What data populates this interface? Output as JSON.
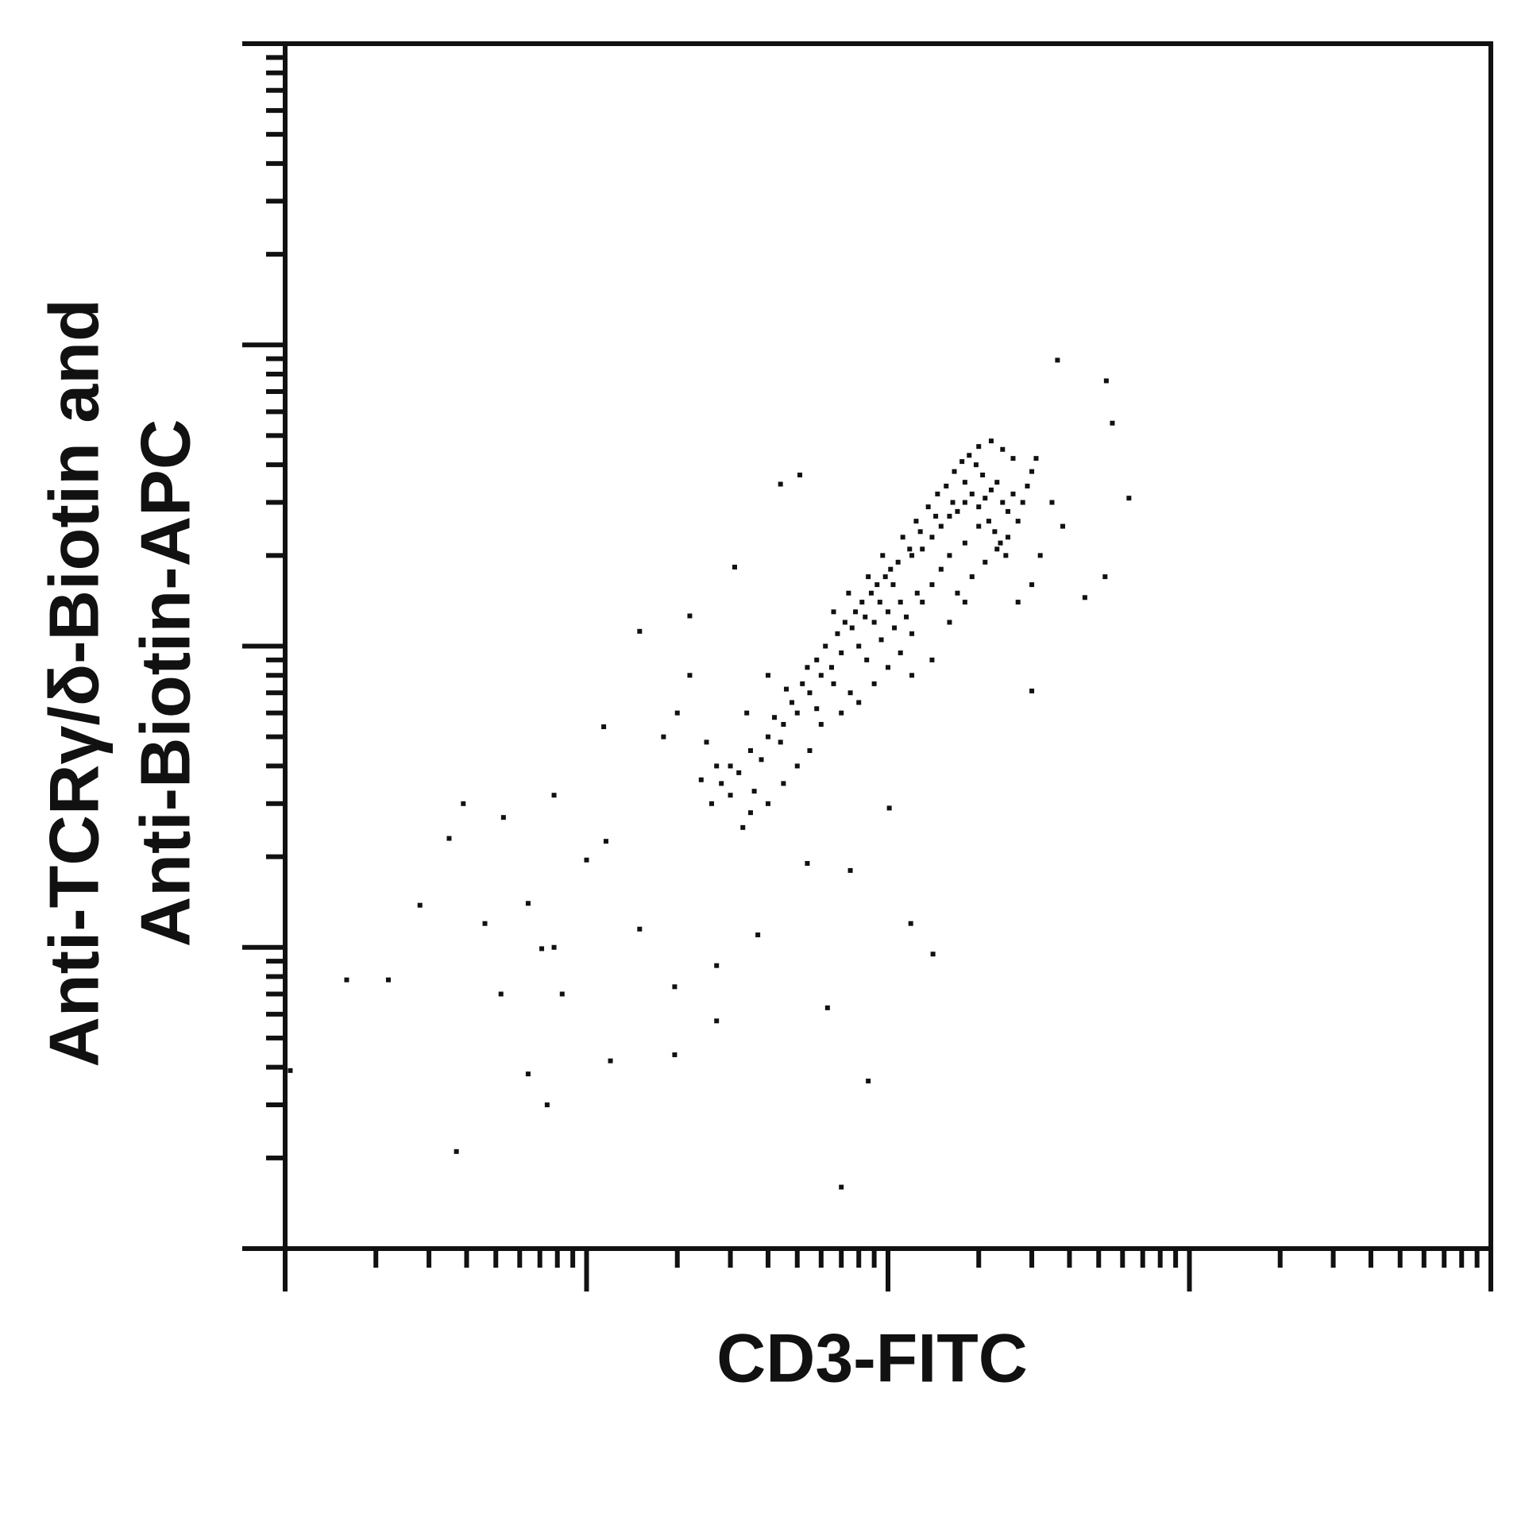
{
  "chart_data": {
    "type": "scatter",
    "x_label": "CD3-FITC",
    "y_label": [
      "Anti-TCRγ/δ-Biotin and",
      "Anti-Biotin-APC"
    ],
    "log_scale": true,
    "grid": false,
    "color": "#111111",
    "xlim": [
      1,
      10000
    ],
    "ylim": [
      1,
      10000
    ],
    "xticks": [
      1,
      10,
      100,
      1000,
      10000
    ],
    "yticks": [
      1,
      10,
      100,
      1000,
      10000
    ],
    "xticks_minor": [
      2,
      3,
      4,
      5,
      6,
      7,
      8,
      9,
      20,
      30,
      40,
      50,
      60,
      70,
      80,
      90,
      200,
      300,
      400,
      500,
      600,
      700,
      800,
      900,
      2000,
      3000,
      4000,
      5000,
      6000,
      7000,
      8000,
      9000
    ],
    "yticks_minor": [
      2,
      3,
      4,
      5,
      6,
      7,
      8,
      9,
      20,
      30,
      40,
      50,
      60,
      70,
      80,
      90,
      200,
      300,
      400,
      500,
      600,
      700,
      800,
      900,
      2000,
      3000,
      4000,
      5000,
      6000,
      7000,
      8000,
      9000
    ],
    "x": [
      1.6,
      2.2,
      3.7,
      1.04,
      2.8,
      3.5,
      3.9,
      5.3,
      4.6,
      6.4,
      7.1,
      7.8,
      5.2,
      8.3,
      6.4,
      7.4,
      12,
      19.6,
      19.6,
      27,
      27,
      63,
      86,
      70,
      119,
      141,
      7.8,
      75,
      54,
      37,
      15,
      11.6,
      10,
      365,
      530,
      555,
      630,
      525,
      450,
      300,
      101,
      51,
      44,
      31,
      22,
      15,
      11.4,
      60,
      70,
      80,
      90,
      100,
      110,
      75,
      85,
      95,
      105,
      115,
      125,
      65,
      55,
      50,
      45,
      40,
      35,
      30,
      28,
      32,
      38,
      42,
      48,
      52,
      58,
      62,
      68,
      72,
      78,
      82,
      88,
      92,
      98,
      102,
      108,
      120,
      130,
      140,
      150,
      160,
      170,
      180,
      190,
      200,
      210,
      220,
      230,
      240,
      250,
      260,
      200,
      180,
      160,
      150,
      140,
      130,
      120,
      110,
      100,
      90,
      80,
      70,
      60,
      55,
      50,
      45,
      40,
      35,
      30,
      27,
      25,
      24,
      26,
      33,
      36,
      44,
      46,
      54,
      66,
      74,
      86,
      96,
      112,
      124,
      136,
      146,
      156,
      166,
      176,
      186,
      196,
      206,
      216,
      226,
      236,
      246,
      170,
      190,
      210,
      230,
      250,
      270,
      280,
      290,
      300,
      310,
      260,
      240,
      220,
      200,
      180,
      164,
      144,
      128,
      118,
      104,
      94,
      84,
      76,
      66,
      58,
      20,
      22,
      18,
      34,
      40,
      160,
      180,
      140,
      120,
      350,
      380,
      320,
      300,
      270
    ],
    "values": [
      7.8,
      7.8,
      2.1,
      3.9,
      13.8,
      23,
      30,
      27,
      12,
      14,
      9.9,
      10,
      7,
      7,
      3.8,
      3,
      4.2,
      4.4,
      7.4,
      8.7,
      5.7,
      6.3,
      3.6,
      1.6,
      12,
      9.5,
      32,
      18,
      19,
      11,
      11.5,
      22.5,
      19.5,
      890,
      760,
      550,
      310,
      170,
      145,
      71,
      29,
      370,
      345,
      183,
      126,
      112,
      54,
      80,
      95,
      100,
      120,
      130,
      140,
      70,
      90,
      105,
      115,
      125,
      150,
      85,
      70,
      60,
      55,
      50,
      45,
      40,
      35,
      38,
      42,
      58,
      65,
      75,
      90,
      100,
      110,
      120,
      130,
      140,
      150,
      160,
      170,
      180,
      190,
      200,
      210,
      230,
      250,
      270,
      280,
      300,
      320,
      290,
      310,
      330,
      350,
      300,
      280,
      320,
      250,
      220,
      200,
      180,
      160,
      140,
      110,
      95,
      85,
      75,
      65,
      60,
      55,
      45,
      40,
      35,
      30,
      28,
      32,
      40,
      48,
      36,
      30,
      25,
      33,
      48,
      72,
      85,
      130,
      150,
      170,
      200,
      230,
      260,
      290,
      320,
      340,
      380,
      410,
      430,
      400,
      370,
      260,
      240,
      220,
      200,
      150,
      170,
      190,
      210,
      230,
      260,
      300,
      340,
      380,
      420,
      420,
      450,
      480,
      460,
      350,
      300,
      270,
      240,
      210,
      160,
      140,
      125,
      115,
      75,
      62,
      60,
      80,
      50,
      60,
      80,
      120,
      140,
      90,
      80,
      300,
      250,
      200,
      160,
      140
    ]
  }
}
